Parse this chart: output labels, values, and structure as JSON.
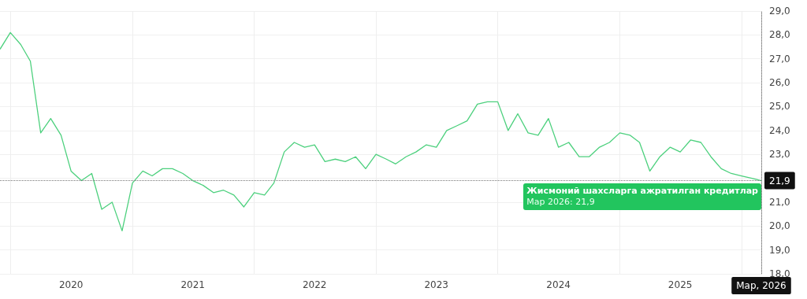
{
  "chart_data": {
    "type": "line",
    "x": [
      "2019-12",
      "2020-01",
      "2020-02",
      "2020-03",
      "2020-04",
      "2020-05",
      "2020-06",
      "2020-07",
      "2020-08",
      "2020-09",
      "2020-10",
      "2020-11",
      "2020-12",
      "2021-01",
      "2021-02",
      "2021-03",
      "2021-04",
      "2021-05",
      "2021-06",
      "2021-07",
      "2021-08",
      "2021-09",
      "2021-10",
      "2021-11",
      "2021-12",
      "2022-01",
      "2022-02",
      "2022-03",
      "2022-04",
      "2022-05",
      "2022-06",
      "2022-07",
      "2022-08",
      "2022-09",
      "2022-10",
      "2022-11",
      "2022-12",
      "2023-01",
      "2023-02",
      "2023-03",
      "2023-04",
      "2023-05",
      "2023-06",
      "2023-07",
      "2023-08",
      "2023-09",
      "2023-10",
      "2023-11",
      "2023-12",
      "2024-01",
      "2024-02",
      "2024-03",
      "2024-04",
      "2024-05",
      "2024-06",
      "2024-07",
      "2024-08",
      "2024-09",
      "2024-10",
      "2024-11",
      "2024-12",
      "2025-01",
      "2025-02",
      "2025-03",
      "2025-04",
      "2025-05",
      "2025-06",
      "2025-07",
      "2025-08",
      "2025-09",
      "2025-10",
      "2025-11",
      "2025-12",
      "2026-01",
      "2026-02",
      "2026-03"
    ],
    "series": [
      {
        "name": "Жисмоний шахсларга ажратилган кредитлар",
        "color": "#4cd07d",
        "values": [
          27.4,
          28.1,
          27.6,
          26.9,
          23.9,
          24.5,
          23.8,
          22.3,
          21.9,
          22.2,
          20.7,
          21.0,
          19.8,
          21.8,
          22.3,
          22.1,
          22.4,
          22.4,
          22.2,
          21.9,
          21.7,
          21.4,
          21.5,
          21.3,
          20.8,
          21.4,
          21.3,
          21.8,
          23.1,
          23.5,
          23.3,
          23.4,
          22.7,
          22.8,
          22.7,
          22.9,
          22.4,
          23.0,
          22.8,
          22.6,
          22.9,
          23.1,
          23.4,
          23.3,
          24.0,
          24.2,
          24.4,
          25.1,
          25.2,
          25.2,
          24.0,
          24.7,
          23.9,
          23.8,
          24.5,
          23.3,
          23.5,
          22.9,
          22.9,
          23.3,
          23.5,
          23.9,
          23.8,
          23.5,
          22.3,
          22.9,
          23.3,
          23.1,
          23.6,
          23.5,
          22.9,
          22.4,
          22.2,
          22.1,
          22.0,
          21.9
        ]
      }
    ],
    "annotations": [
      "Мар 2026: 21,9"
    ],
    "ref_lines": [
      {
        "axis": "y",
        "value": 21.9,
        "label": "21,9",
        "line_style": "dotted"
      },
      {
        "axis": "x",
        "value": "2026-03",
        "label": "Мар, 2026",
        "line_style": "dotted"
      }
    ],
    "xlim": [
      "2019-12",
      "2026-03"
    ],
    "xticks": [
      {
        "value": "2020-01",
        "label": null
      },
      {
        "value": "2020-07",
        "label": "2020"
      },
      {
        "value": "2021-01",
        "label": null
      },
      {
        "value": "2021-07",
        "label": "2021"
      },
      {
        "value": "2022-01",
        "label": null
      },
      {
        "value": "2022-07",
        "label": "2022"
      },
      {
        "value": "2023-01",
        "label": null
      },
      {
        "value": "2023-07",
        "label": "2023"
      },
      {
        "value": "2024-01",
        "label": null
      },
      {
        "value": "2024-07",
        "label": "2024"
      },
      {
        "value": "2025-01",
        "label": null
      },
      {
        "value": "2025-07",
        "label": "2025"
      },
      {
        "value": "2026-01",
        "label": null
      }
    ],
    "ylim": [
      18,
      29
    ],
    "yticks": [
      {
        "value": 18,
        "label": "18,0"
      },
      {
        "value": 19,
        "label": "19,0"
      },
      {
        "value": 20,
        "label": "20,0"
      },
      {
        "value": 21,
        "label": "21,0"
      },
      {
        "value": 22,
        "label": null
      },
      {
        "value": 23,
        "label": "23,0"
      },
      {
        "value": 24,
        "label": "24,0"
      },
      {
        "value": 25,
        "label": "25,0"
      },
      {
        "value": 26,
        "label": "26,0"
      },
      {
        "value": 27,
        "label": "27,0"
      },
      {
        "value": 28,
        "label": "28,0"
      },
      {
        "value": 29,
        "label": "29,0"
      }
    ],
    "grid": true,
    "marker": "none",
    "line_style": "solid",
    "legend": false
  }
}
